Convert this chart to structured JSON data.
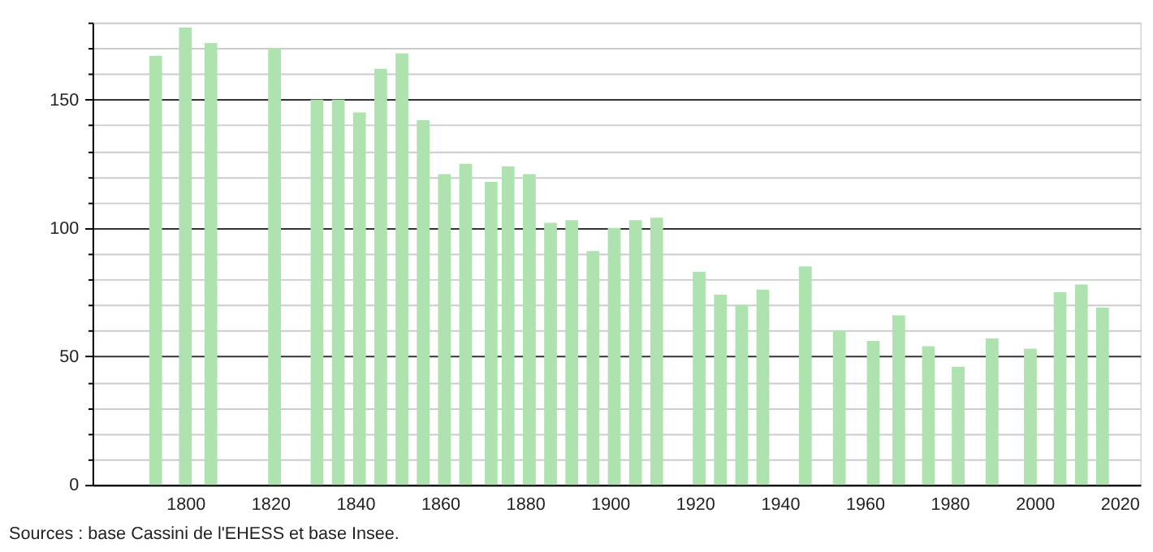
{
  "chart_data": {
    "type": "bar",
    "x": [
      1793,
      1800,
      1806,
      1821,
      1831,
      1836,
      1841,
      1846,
      1851,
      1856,
      1861,
      1866,
      1872,
      1876,
      1881,
      1886,
      1891,
      1896,
      1901,
      1906,
      1911,
      1921,
      1926,
      1931,
      1936,
      1946,
      1954,
      1962,
      1968,
      1975,
      1982,
      1990,
      1999,
      2006,
      2011,
      2016
    ],
    "values": [
      167,
      178,
      172,
      170,
      150,
      150,
      145,
      162,
      168,
      142,
      121,
      125,
      118,
      124,
      121,
      102,
      103,
      91,
      100,
      103,
      104,
      83,
      74,
      70,
      76,
      85,
      60,
      56,
      66,
      54,
      46,
      57,
      53,
      75,
      78,
      69
    ],
    "color": "#aee2ae",
    "xlim": [
      1780,
      2023
    ],
    "xticks": [
      1800,
      1820,
      1840,
      1860,
      1880,
      1900,
      1920,
      1940,
      1960,
      1980,
      2000,
      2020
    ],
    "ylim": [
      0,
      180
    ],
    "yticks": [
      0,
      {
        "value": 10,
        "label": null
      },
      {
        "value": 20,
        "label": null
      },
      {
        "value": 30,
        "label": null
      },
      {
        "value": 40,
        "label": null
      },
      50,
      {
        "value": 60,
        "label": null
      },
      {
        "value": 70,
        "label": null
      },
      {
        "value": 80,
        "label": null
      },
      {
        "value": 90,
        "label": null
      },
      100,
      {
        "value": 110,
        "label": null
      },
      {
        "value": 120,
        "label": null
      },
      {
        "value": 130,
        "label": null
      },
      {
        "value": 140,
        "label": null
      },
      150,
      {
        "value": 160,
        "label": null
      },
      {
        "value": 170,
        "label": null
      },
      {
        "value": 180,
        "label": null
      }
    ],
    "grid": "y",
    "annotations": [
      "Sources : base Cassini de l'EHESS et base Insee."
    ]
  }
}
